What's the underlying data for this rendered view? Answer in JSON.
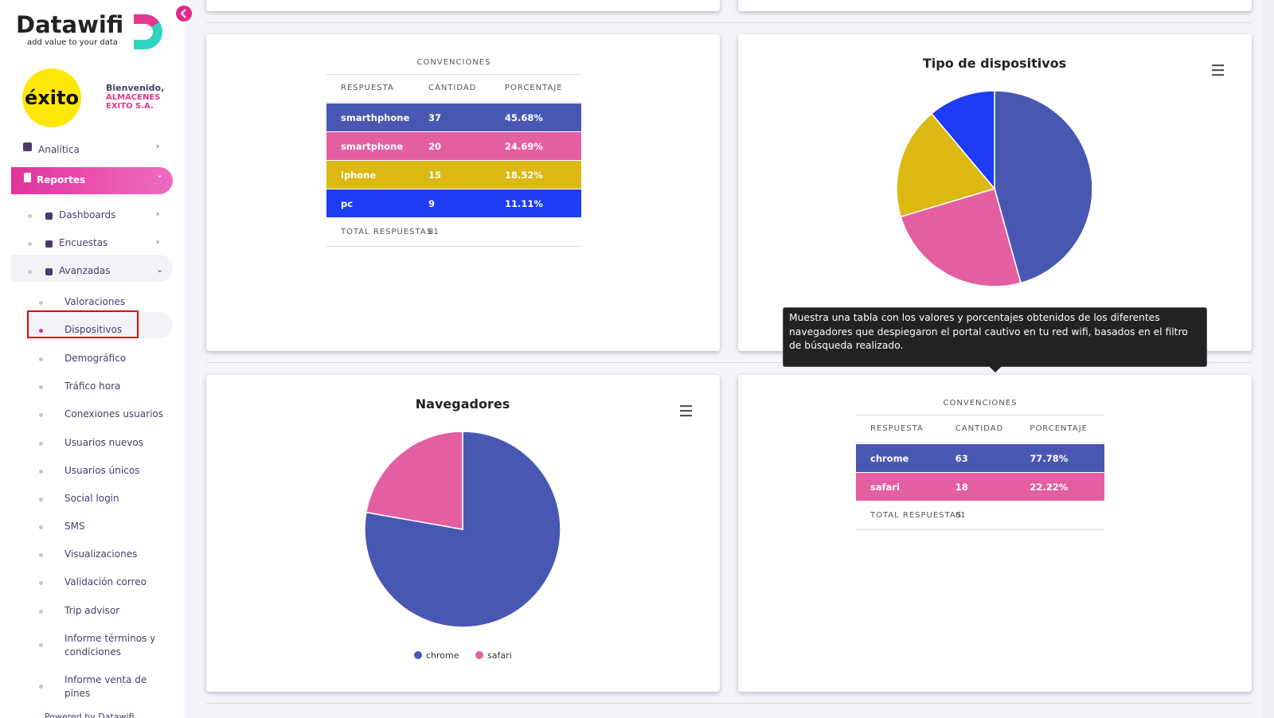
{
  "sidebar": {
    "brand": "Datawifi",
    "tagline": "add value to your data",
    "client_logo": "éxito",
    "welcome": "Bienvenido,",
    "client_name": "ALMACENES EXITO S.A.",
    "menu": [
      "Analítica",
      "Reportes"
    ],
    "submenu": [
      "Dashboards",
      "Encuestas",
      "Avanzadas"
    ],
    "items": [
      "Valoraciones",
      "Dispositivos",
      "Demográfico",
      "Tráfico hora",
      "Conexiones usuarios",
      "Usuarios nuevos",
      "Usuarios únicos",
      "Social login",
      "SMS",
      "Visualizaciones",
      "Validación correo",
      "Trip advisor",
      "Informe términos y condiciones",
      "Informe venta de pines"
    ],
    "footer": "Powered by Datawifi"
  },
  "devices": {
    "table": {
      "caption": "CONVENCIONES",
      "columns": [
        "RESPUESTA",
        "CANTIDAD",
        "PORCENTAJE"
      ],
      "rows": [
        {
          "name": "smarthphone",
          "count": 37,
          "percent": "45.68%",
          "color": "#4858b2"
        },
        {
          "name": "smartphone",
          "count": 20,
          "percent": "24.69%",
          "color": "#e45fa2"
        },
        {
          "name": "iphone",
          "count": 15,
          "percent": "18.52%",
          "color": "#dbb912"
        },
        {
          "name": "pc",
          "count": 9,
          "percent": "11.11%",
          "color": "#1e3cf4"
        }
      ],
      "total_label": "TOTAL RESPUESTAS",
      "total": 81
    },
    "chart": {
      "type": "pie",
      "title": "Tipo de dispositivos",
      "legend": false
    }
  },
  "browsers": {
    "table": {
      "caption": "CONVENCIONES",
      "columns": [
        "RESPUESTA",
        "CANTIDAD",
        "PORCENTAJE"
      ],
      "rows": [
        {
          "name": "chrome",
          "count": 63,
          "percent": "77.78%",
          "color": "#4858b2"
        },
        {
          "name": "safari",
          "count": 18,
          "percent": "22.22%",
          "color": "#e45fa2"
        }
      ],
      "total_label": "TOTAL RESPUESTAS",
      "total": 81
    },
    "chart": {
      "type": "pie",
      "title": "Navegadores",
      "legend": true
    }
  },
  "tooltip": "Muestra una tabla con los valores y porcentajes obtenidos de los diferentes navegadores que despiegaron el portal cautivo en tu red wifi, basados en el filtro de búsqueda realizado."
}
